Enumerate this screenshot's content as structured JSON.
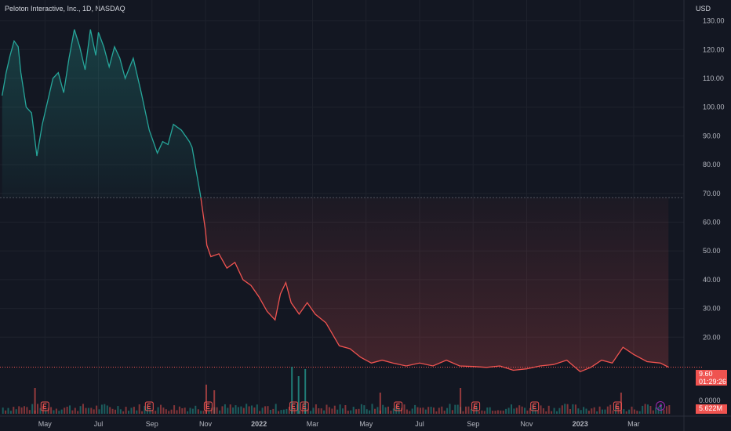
{
  "header": {
    "title": "Peloton Interactive, Inc., 1D, NASDAQ",
    "currency": "USD"
  },
  "price_tag": {
    "price": "9.60",
    "countdown": "01:29:26",
    "color": "#ef5350"
  },
  "volume_tag": {
    "value": "5.622M",
    "zero_label": "0.0000"
  },
  "colors": {
    "up_line": "#26a69a",
    "down_line": "#ef5350",
    "background": "#131722",
    "grid": "#1e222d",
    "earnings_badge": "#ef5350"
  },
  "icons": [
    "earnings-e-icon",
    "dividend-bolt-icon"
  ],
  "chart_data": {
    "type": "area",
    "title": "Peloton Interactive, Inc., 1D, NASDAQ",
    "xlabel": "",
    "ylabel": "USD",
    "ylim": [
      0,
      135
    ],
    "y_ticks": [
      "130.00",
      "120.00",
      "110.00",
      "100.00",
      "90.00",
      "80.00",
      "70.00",
      "60.00",
      "50.00",
      "40.00",
      "30.00",
      "20.00"
    ],
    "x_ticks": [
      "May",
      "Jul",
      "Sep",
      "Nov",
      "2022",
      "Mar",
      "May",
      "Jul",
      "Sep",
      "Nov",
      "2023",
      "Mar"
    ],
    "x_tick_months": [
      1,
      3,
      5,
      7,
      9,
      11,
      13,
      15,
      17,
      19,
      21,
      23
    ],
    "baseline": 68.5,
    "last_price": 9.6,
    "x_months": [
      -0.6,
      -0.45,
      -0.3,
      -0.15,
      0.0,
      0.1,
      0.3,
      0.5,
      0.7,
      0.9,
      1.1,
      1.3,
      1.5,
      1.7,
      1.9,
      2.1,
      2.3,
      2.5,
      2.7,
      2.9,
      3.0,
      3.2,
      3.4,
      3.6,
      3.8,
      4.0,
      4.3,
      4.6,
      4.9,
      5.2,
      5.4,
      5.6,
      5.8,
      6.1,
      6.4,
      6.5,
      6.8,
      7.0,
      7.05,
      7.2,
      7.5,
      7.8,
      8.1,
      8.4,
      8.7,
      9.0,
      9.3,
      9.6,
      9.8,
      10.0,
      10.2,
      10.5,
      10.8,
      11.1,
      11.5,
      12.0,
      12.4,
      12.8,
      13.2,
      13.6,
      14.0,
      14.5,
      15.0,
      15.5,
      16.0,
      16.5,
      17.0,
      17.5,
      18.0,
      18.5,
      19.0,
      19.5,
      20.0,
      20.5,
      21.0,
      21.4,
      21.8,
      22.2,
      22.6,
      23.0,
      23.5,
      24.0,
      24.3
    ],
    "prices": [
      104,
      112,
      118,
      123,
      121,
      112,
      100,
      98,
      83,
      94,
      102,
      110,
      112,
      105,
      117,
      127,
      121,
      113,
      127,
      118,
      126,
      121,
      114,
      121,
      117,
      110,
      117,
      105,
      92,
      84,
      88,
      87,
      94,
      92,
      88,
      86,
      70,
      57,
      52,
      48,
      49,
      44,
      46,
      40,
      38,
      34,
      29,
      26,
      35,
      39,
      32,
      28,
      32,
      28,
      25,
      17,
      16,
      13,
      11,
      12,
      11,
      10,
      11,
      10,
      12,
      10,
      9.8,
      9.5,
      10,
      8.5,
      9.0,
      10,
      10.5,
      12,
      8.0,
      9.5,
      12,
      11,
      16.5,
      14,
      11.5,
      11,
      9.6
    ],
    "volume_spikes": [
      {
        "month": 0.6,
        "volume": 0.55
      },
      {
        "month": 7.0,
        "volume": 0.62
      },
      {
        "month": 7.3,
        "volume": 0.5
      },
      {
        "month": 10.2,
        "volume": 1.0
      },
      {
        "month": 10.45,
        "volume": 0.8
      },
      {
        "month": 10.7,
        "volume": 0.95
      },
      {
        "month": 13.5,
        "volume": 0.45
      },
      {
        "month": 16.5,
        "volume": 0.55
      },
      {
        "month": 22.5,
        "volume": 0.45
      }
    ],
    "earnings_months": [
      1.0,
      4.9,
      7.1,
      10.3,
      10.7,
      14.2,
      17.1,
      19.3,
      22.4
    ],
    "dividend_months": [
      24.0
    ]
  }
}
